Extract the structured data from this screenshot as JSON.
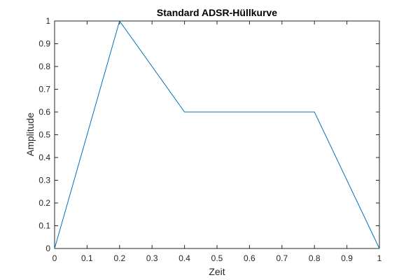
{
  "chart_data": {
    "type": "line",
    "title": "Standard ADSR-Hüllkurve",
    "xlabel": "Zeit",
    "ylabel": "Amplitude",
    "xlim": [
      0,
      1
    ],
    "ylim": [
      0,
      1
    ],
    "x_ticks": [
      0,
      0.1,
      0.2,
      0.3,
      0.4,
      0.5,
      0.6,
      0.7,
      0.8,
      0.9,
      1
    ],
    "x_tick_labels": [
      "0",
      "0.1",
      "0.2",
      "0.3",
      "0.4",
      "0.5",
      "0.6",
      "0.7",
      "0.8",
      "0.9",
      "1"
    ],
    "y_ticks": [
      0,
      0.1,
      0.2,
      0.3,
      0.4,
      0.5,
      0.6,
      0.7,
      0.8,
      0.9,
      1
    ],
    "y_tick_labels": [
      "0",
      "0.1",
      "0.2",
      "0.3",
      "0.4",
      "0.5",
      "0.6",
      "0.7",
      "0.8",
      "0.9",
      "1"
    ],
    "grid": false,
    "box": true,
    "series": [
      {
        "x": [
          0,
          0.2,
          0.4,
          0.8,
          1
        ],
        "y": [
          0,
          1,
          0.6,
          0.6,
          0
        ],
        "color": "#0072BD"
      }
    ]
  }
}
